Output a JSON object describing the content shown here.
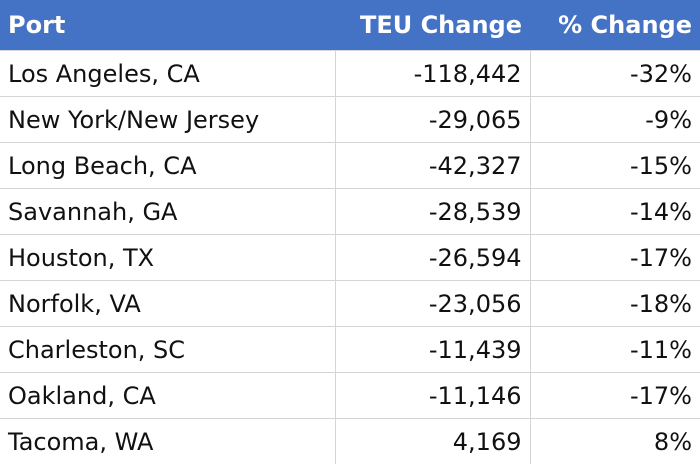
{
  "table": {
    "header": [
      "Port",
      "TEU Change",
      "% Change"
    ],
    "rows": [
      [
        "Los Angeles, CA",
        "-118,442",
        "-32%"
      ],
      [
        "New York/New Jersey",
        "-29,065",
        "-9%"
      ],
      [
        "Long Beach, CA",
        "-42,327",
        "-15%"
      ],
      [
        "Savannah, GA",
        "-28,539",
        "-14%"
      ],
      [
        "Houston, TX",
        "-26,594",
        "-17%"
      ],
      [
        "Norfolk, VA",
        "-23,056",
        "-18%"
      ],
      [
        "Charleston, SC",
        "-11,439",
        "-11%"
      ],
      [
        "Oakland, CA",
        "-11,146",
        "-17%"
      ],
      [
        "Tacoma, WA",
        "4,169",
        "8%"
      ]
    ]
  }
}
